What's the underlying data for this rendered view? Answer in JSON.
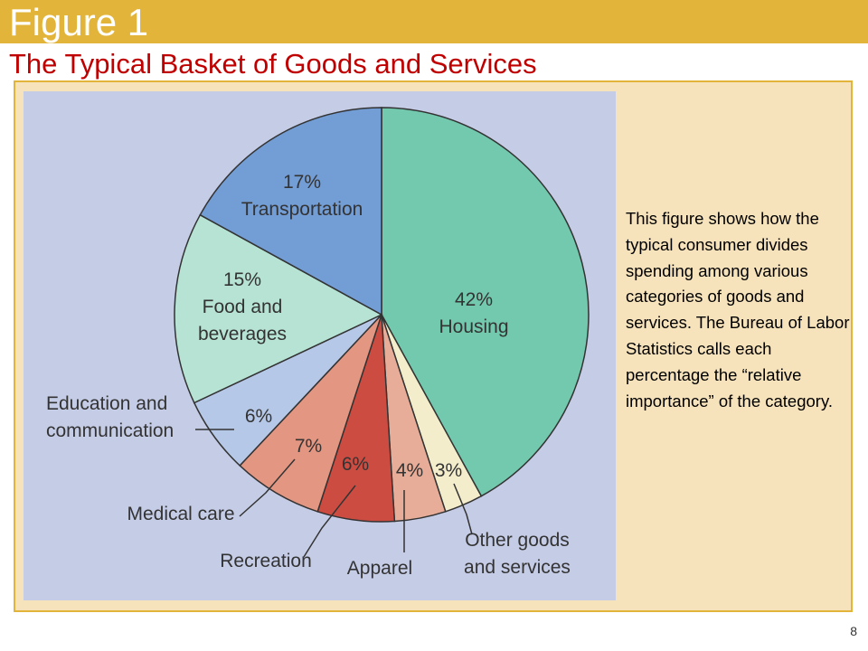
{
  "header": {
    "figure_label": "Figure 1",
    "title": "The Typical Basket of Goods and Services"
  },
  "caption": "This figure shows how the typical consumer divides spending among various categories of goods and services. The Bureau of Labor Statistics calls each percentage the “relative importance” of the category.",
  "page_number": "8",
  "colors": {
    "header_bar": "#e2b43a",
    "title": "#c00000",
    "panel": "#f7e3bb",
    "chart_background": "#c5cce6"
  },
  "chart_data": {
    "type": "pie",
    "title": "",
    "start_angle_deg": 0,
    "direction": "clockwise",
    "slices": [
      {
        "value": 42,
        "pct_label": "42%",
        "label_lines": [
          "Housing"
        ],
        "label_mode": "inside",
        "color": "#72c9ad"
      },
      {
        "value": 3,
        "pct_label": "3%",
        "label_lines": [
          "Other goods",
          "and services"
        ],
        "label_mode": "callout",
        "color": "#f4edcc"
      },
      {
        "value": 4,
        "pct_label": "4%",
        "label_lines": [
          "Apparel"
        ],
        "label_mode": "callout",
        "color": "#e8ad98"
      },
      {
        "value": 6,
        "pct_label": "6%",
        "label_lines": [
          "Recreation"
        ],
        "label_mode": "callout",
        "color": "#cd4c42"
      },
      {
        "value": 7,
        "pct_label": "7%",
        "label_lines": [
          "Medical care"
        ],
        "label_mode": "callout",
        "color": "#e39682"
      },
      {
        "value": 6,
        "pct_label": "6%",
        "label_lines": [
          "Education and",
          "communication"
        ],
        "label_mode": "callout",
        "color": "#b6c8e8"
      },
      {
        "value": 15,
        "pct_label": "15%",
        "label_lines": [
          "Food and",
          "beverages"
        ],
        "label_mode": "inside",
        "color": "#b6e3d3"
      },
      {
        "value": 17,
        "pct_label": "17%",
        "label_lines": [
          "Transportation"
        ],
        "label_mode": "inside",
        "color": "#739dd5"
      }
    ]
  }
}
